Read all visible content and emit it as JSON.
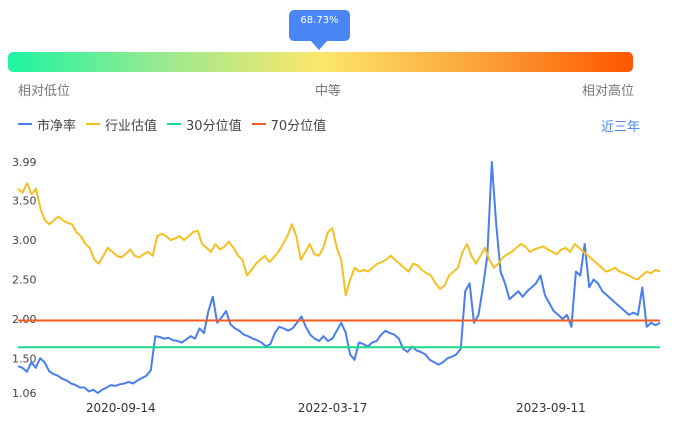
{
  "gauge": {
    "percentile_label": "68.73%",
    "percentile": 0.6873,
    "low_label": "相对低位",
    "mid_label": "中等",
    "high_label": "相对高位"
  },
  "legend": {
    "items": [
      {
        "label": "市净率",
        "color": "#4a7df0"
      },
      {
        "label": "行业估值",
        "color": "#f5c023"
      },
      {
        "label": "30分位值",
        "color": "#19d98d"
      },
      {
        "label": "70分位值",
        "color": "#f25a1e"
      }
    ],
    "range_link": "近三年"
  },
  "chart_data": {
    "type": "line",
    "y_ticks": [
      "3.99",
      "3.50",
      "3.00",
      "2.50",
      "2.00",
      "1.50",
      "1.06"
    ],
    "ylim": [
      1.06,
      3.99
    ],
    "x_ticks": [
      "2020-09-14",
      "2022-03-17",
      "2023-09-11"
    ],
    "grid": false,
    "series": [
      {
        "name": "市净率",
        "color": "#4a7df0",
        "values": [
          1.4,
          1.38,
          1.33,
          1.45,
          1.38,
          1.5,
          1.45,
          1.34,
          1.3,
          1.28,
          1.24,
          1.22,
          1.18,
          1.16,
          1.13,
          1.13,
          1.08,
          1.1,
          1.06,
          1.1,
          1.13,
          1.16,
          1.15,
          1.17,
          1.18,
          1.2,
          1.18,
          1.22,
          1.25,
          1.28,
          1.35,
          1.78,
          1.77,
          1.75,
          1.76,
          1.73,
          1.72,
          1.7,
          1.74,
          1.78,
          1.75,
          1.88,
          1.82,
          2.1,
          2.28,
          1.95,
          2.02,
          2.1,
          1.93,
          1.88,
          1.85,
          1.8,
          1.78,
          1.75,
          1.73,
          1.7,
          1.65,
          1.68,
          1.82,
          1.9,
          1.88,
          1.85,
          1.88,
          1.95,
          2.03,
          1.9,
          1.8,
          1.75,
          1.72,
          1.78,
          1.72,
          1.75,
          1.85,
          1.95,
          1.83,
          1.55,
          1.48,
          1.7,
          1.68,
          1.65,
          1.7,
          1.72,
          1.8,
          1.85,
          1.82,
          1.8,
          1.75,
          1.62,
          1.58,
          1.65,
          1.6,
          1.58,
          1.55,
          1.48,
          1.45,
          1.42,
          1.45,
          1.5,
          1.52,
          1.55,
          1.62,
          2.35,
          2.45,
          1.95,
          2.05,
          2.4,
          2.8,
          3.99,
          3.2,
          2.6,
          2.45,
          2.25,
          2.3,
          2.35,
          2.28,
          2.35,
          2.4,
          2.45,
          2.55,
          2.3,
          2.2,
          2.1,
          2.05,
          2.0,
          2.05,
          1.9,
          2.6,
          2.55,
          2.95,
          2.4,
          2.5,
          2.45,
          2.35,
          2.3,
          2.25,
          2.2,
          2.15,
          2.1,
          2.05,
          2.08,
          2.05,
          2.4,
          1.9,
          1.95,
          1.92,
          1.95
        ]
      },
      {
        "name": "行业估值",
        "color": "#f5c023",
        "values": [
          3.65,
          3.6,
          3.72,
          3.58,
          3.65,
          3.4,
          3.25,
          3.2,
          3.25,
          3.3,
          3.25,
          3.22,
          3.2,
          3.1,
          3.05,
          2.95,
          2.9,
          2.75,
          2.7,
          2.8,
          2.9,
          2.85,
          2.8,
          2.78,
          2.82,
          2.88,
          2.8,
          2.78,
          2.82,
          2.85,
          2.8,
          3.05,
          3.08,
          3.05,
          3.0,
          3.02,
          3.05,
          3.0,
          3.05,
          3.1,
          3.12,
          2.95,
          2.9,
          2.85,
          2.95,
          2.88,
          2.92,
          2.98,
          2.9,
          2.8,
          2.75,
          2.55,
          2.62,
          2.7,
          2.75,
          2.8,
          2.72,
          2.78,
          2.85,
          2.95,
          3.05,
          3.2,
          3.05,
          2.75,
          2.85,
          2.95,
          2.82,
          2.8,
          2.9,
          3.1,
          3.15,
          2.9,
          2.75,
          2.3,
          2.5,
          2.65,
          2.6,
          2.62,
          2.6,
          2.65,
          2.7,
          2.72,
          2.75,
          2.8,
          2.75,
          2.7,
          2.65,
          2.6,
          2.7,
          2.68,
          2.62,
          2.58,
          2.55,
          2.45,
          2.38,
          2.42,
          2.55,
          2.6,
          2.65,
          2.85,
          2.95,
          2.8,
          2.7,
          2.8,
          2.9,
          2.75,
          2.65,
          2.7,
          2.78,
          2.82,
          2.85,
          2.9,
          2.95,
          2.92,
          2.85,
          2.88,
          2.9,
          2.92,
          2.88,
          2.85,
          2.82,
          2.88,
          2.9,
          2.85,
          2.95,
          2.9,
          2.85,
          2.8,
          2.75,
          2.7,
          2.65,
          2.6,
          2.62,
          2.65,
          2.6,
          2.58,
          2.55,
          2.52,
          2.5,
          2.55,
          2.6,
          2.58,
          2.62,
          2.6
        ]
      },
      {
        "name": "30分位值",
        "color": "#19d98d",
        "values": [
          1.64
        ]
      },
      {
        "name": "70分位值",
        "color": "#f25a1e",
        "values": [
          1.98
        ]
      }
    ]
  }
}
